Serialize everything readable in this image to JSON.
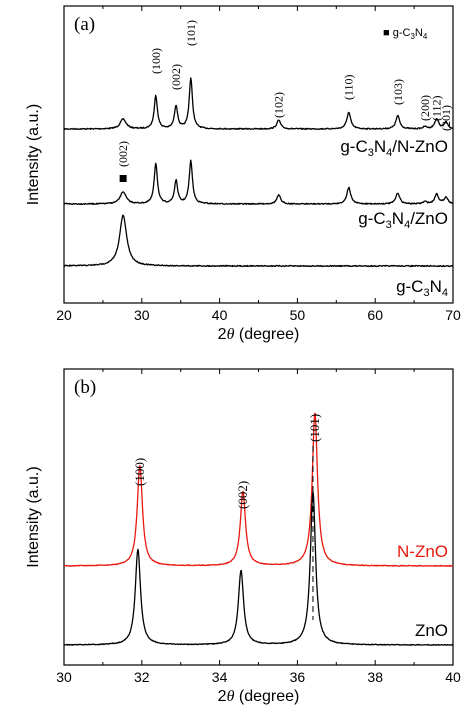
{
  "chart_data": [
    {
      "panel": "(a)",
      "type": "line",
      "xlabel_prefix": "2",
      "xlabel_theta": "θ",
      "xlabel_suffix": " (degree)",
      "ylabel": "Intensity (a.u.)",
      "xlim": [
        20,
        70
      ],
      "xticks": [
        20,
        30,
        40,
        50,
        60,
        70
      ],
      "legend": {
        "marker": "■",
        "text": "g-C",
        "sub1": "3",
        "mid": "N",
        "sub2": "4"
      },
      "series": [
        {
          "name": "g-C3N4/N-ZnO",
          "label_parts": [
            [
              "g-C",
              false
            ],
            [
              "3",
              true
            ],
            [
              "N",
              false
            ],
            [
              "4",
              true
            ],
            [
              "/N-ZnO",
              false
            ]
          ],
          "color": "#000000",
          "peaks": [
            [
              27.6,
              0.45,
              0.45
            ],
            [
              31.8,
              1.5,
              0.25
            ],
            [
              34.4,
              1.05,
              0.25
            ],
            [
              36.3,
              2.3,
              0.25
            ],
            [
              47.6,
              0.4,
              0.3
            ],
            [
              56.6,
              0.75,
              0.3
            ],
            [
              62.9,
              0.6,
              0.3
            ],
            [
              66.4,
              0.1,
              0.3
            ],
            [
              67.9,
              0.45,
              0.3
            ],
            [
              69.1,
              0.3,
              0.3
            ]
          ]
        },
        {
          "name": "g-C3N4/ZnO",
          "label_parts": [
            [
              "g-C",
              false
            ],
            [
              "3",
              true
            ],
            [
              "N",
              false
            ],
            [
              "4",
              true
            ],
            [
              "/ZnO",
              false
            ]
          ],
          "color": "#000000",
          "peaks": [
            [
              27.6,
              0.55,
              0.45
            ],
            [
              31.8,
              1.85,
              0.25
            ],
            [
              34.4,
              1.05,
              0.25
            ],
            [
              36.3,
              1.95,
              0.25
            ],
            [
              47.6,
              0.4,
              0.3
            ],
            [
              56.6,
              0.75,
              0.3
            ],
            [
              62.9,
              0.5,
              0.3
            ],
            [
              66.4,
              0.1,
              0.3
            ],
            [
              67.9,
              0.45,
              0.3
            ],
            [
              69.1,
              0.3,
              0.3
            ]
          ]
        },
        {
          "name": "g-C3N4",
          "label_parts": [
            [
              "g-C",
              false
            ],
            [
              "3",
              true
            ],
            [
              "N",
              false
            ],
            [
              "4",
              true
            ]
          ],
          "color": "#000000",
          "peaks": [
            [
              27.6,
              2.3,
              0.55
            ]
          ]
        }
      ],
      "peak_labels": [
        {
          "label": "(002)",
          "x": 27.6,
          "marker": true
        },
        {
          "label": "(100)",
          "x": 31.8
        },
        {
          "label": "(002)",
          "x": 34.4
        },
        {
          "label": "(101)",
          "x": 36.3
        },
        {
          "label": "(102)",
          "x": 47.6
        },
        {
          "label": "(110)",
          "x": 56.6
        },
        {
          "label": "(103)",
          "x": 62.9
        },
        {
          "label": "(200)",
          "x": 66.4
        },
        {
          "label": "(112)",
          "x": 67.9
        },
        {
          "label": "(201)",
          "x": 69.1
        }
      ]
    },
    {
      "panel": "(b)",
      "type": "line",
      "xlabel_prefix": "2",
      "xlabel_theta": "θ",
      "xlabel_suffix": " (degree)",
      "ylabel": "Intensity (a.u.)",
      "xlim": [
        30,
        40
      ],
      "xticks": [
        30,
        32,
        34,
        36,
        38,
        40
      ],
      "series": [
        {
          "name": "N-ZnO",
          "color": "#e8190f",
          "peaks": [
            [
              31.95,
              2.1,
              0.08
            ],
            [
              34.6,
              1.55,
              0.08
            ],
            [
              36.45,
              3.2,
              0.08
            ]
          ]
        },
        {
          "name": "ZnO",
          "color": "#000000",
          "peaks": [
            [
              31.9,
              2.0,
              0.08
            ],
            [
              34.55,
              1.55,
              0.08
            ],
            [
              36.4,
              3.2,
              0.08
            ]
          ]
        }
      ],
      "peak_labels": [
        {
          "label": "(100)",
          "x": 31.95
        },
        {
          "label": "(002)",
          "x": 34.6
        },
        {
          "label": "(101)",
          "x": 36.45
        }
      ],
      "reference_line_x": 36.4
    }
  ]
}
